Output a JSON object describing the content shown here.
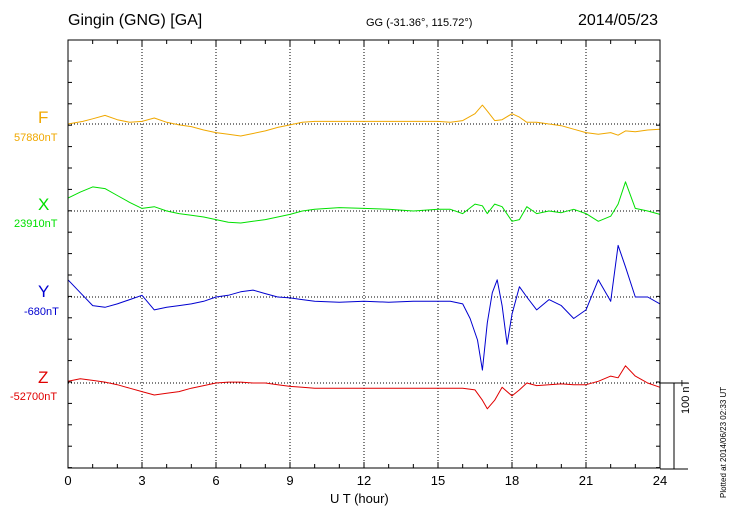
{
  "header": {
    "station": "Gingin (GNG)  [GA]",
    "coords": "GG (-31.36°, 115.72°)",
    "date": "2014/05/23"
  },
  "plotted_note": "Plotted at 2014/06/23 02:33 UT",
  "chart_data": {
    "type": "line",
    "xlabel": "U T (hour)",
    "xlim": [
      0,
      24
    ],
    "x_ticks": [
      "0",
      "3",
      "6",
      "9",
      "12",
      "15",
      "18",
      "21",
      "24"
    ],
    "grid": true,
    "scale_bar": {
      "label": "100 nT",
      "value_nT": 100
    },
    "series": [
      {
        "name": "F",
        "baseline": "57880nT",
        "color": "#f0a800",
        "x": [
          0,
          0.6,
          1,
          1.5,
          2,
          2.5,
          3,
          3.5,
          4,
          4.5,
          5,
          5.5,
          6,
          6.5,
          7,
          7.5,
          8,
          8.5,
          9,
          9.5,
          10,
          11,
          12,
          13,
          14,
          15,
          15.5,
          16,
          16.5,
          16.8,
          17,
          17.3,
          17.6,
          18,
          18.3,
          18.6,
          19,
          19.5,
          20,
          20.5,
          21,
          21.5,
          22,
          22.3,
          22.6,
          23,
          23.5,
          24
        ],
        "y": [
          0,
          3,
          6,
          10,
          5,
          2,
          3,
          7,
          2,
          -1,
          -3,
          -7,
          -10,
          -12,
          -14,
          -11,
          -8,
          -4,
          -1,
          2,
          3,
          3,
          3,
          3,
          3,
          3,
          2,
          4,
          12,
          22,
          15,
          4,
          5,
          12,
          8,
          2,
          2,
          0,
          -2,
          -6,
          -10,
          -12,
          -10,
          -13,
          -8,
          -9,
          -7,
          -6
        ]
      },
      {
        "name": "X",
        "baseline": "23910nT",
        "color": "#00e000",
        "x": [
          0,
          0.5,
          1,
          1.5,
          2,
          2.5,
          3,
          3.5,
          4,
          4.5,
          5,
          5.5,
          6,
          6.5,
          7,
          7.5,
          8,
          8.5,
          9,
          9.5,
          10,
          11,
          12,
          13,
          14,
          15,
          15.5,
          16,
          16.5,
          16.8,
          17,
          17.3,
          17.6,
          18,
          18.3,
          18.6,
          19,
          19.5,
          20,
          20.5,
          21,
          21.5,
          22,
          22.3,
          22.6,
          23,
          23.5,
          24
        ],
        "y": [
          15,
          22,
          28,
          26,
          18,
          10,
          3,
          5,
          0,
          -3,
          -5,
          -7,
          -10,
          -13,
          -14,
          -12,
          -10,
          -7,
          -4,
          0,
          2,
          4,
          3,
          2,
          0,
          2,
          2,
          -3,
          8,
          6,
          -3,
          8,
          5,
          -12,
          -10,
          5,
          -3,
          0,
          -2,
          2,
          -3,
          -12,
          -6,
          8,
          34,
          3,
          0,
          -4
        ]
      },
      {
        "name": "Y",
        "baseline": "-680nT",
        "color": "#0000d0",
        "x": [
          0,
          0.5,
          1,
          1.5,
          2,
          2.5,
          3,
          3.5,
          4,
          4.5,
          5,
          5.5,
          6,
          6.5,
          7,
          7.5,
          8,
          8.5,
          9,
          9.5,
          10,
          11,
          12,
          13,
          14,
          15,
          15.5,
          16,
          16.3,
          16.6,
          16.8,
          17,
          17.2,
          17.4,
          17.6,
          17.8,
          18,
          18.3,
          18.6,
          19,
          19.5,
          20,
          20.5,
          21,
          21.5,
          22,
          22.3,
          22.6,
          23,
          23.5,
          24
        ],
        "y": [
          20,
          5,
          -10,
          -12,
          -8,
          -3,
          2,
          -15,
          -12,
          -10,
          -8,
          -5,
          0,
          2,
          6,
          8,
          4,
          0,
          -1,
          -3,
          -5,
          -6,
          -5,
          -6,
          -5,
          -5,
          -5,
          -8,
          -25,
          -50,
          -85,
          -30,
          5,
          20,
          -10,
          -55,
          -20,
          12,
          0,
          -15,
          -3,
          -10,
          -25,
          -15,
          20,
          -5,
          60,
          35,
          0,
          0,
          -8
        ]
      },
      {
        "name": "Z",
        "baseline": "-52700nT",
        "color": "#e00000",
        "x": [
          0,
          0.5,
          1,
          1.5,
          2,
          2.5,
          3,
          3.5,
          4,
          4.5,
          5,
          5.5,
          6,
          6.5,
          7,
          7.5,
          8,
          8.5,
          9,
          9.5,
          10,
          11,
          12,
          13,
          14,
          15,
          15.5,
          16,
          16.5,
          16.8,
          17,
          17.3,
          17.6,
          18,
          18.3,
          18.6,
          19,
          19.5,
          20,
          20.5,
          21,
          21.5,
          22,
          22.3,
          22.6,
          23,
          23.5,
          24
        ],
        "y": [
          2,
          5,
          3,
          1,
          -2,
          -6,
          -10,
          -14,
          -12,
          -10,
          -6,
          -3,
          0,
          1,
          1,
          0,
          0,
          -2,
          -4,
          -5,
          -6,
          -6,
          -6,
          -6,
          -6,
          -6,
          -6,
          -6,
          -8,
          -20,
          -30,
          -20,
          -5,
          -15,
          -8,
          0,
          -3,
          -2,
          -1,
          -2,
          -2,
          2,
          8,
          6,
          20,
          8,
          0,
          -5
        ]
      }
    ]
  }
}
